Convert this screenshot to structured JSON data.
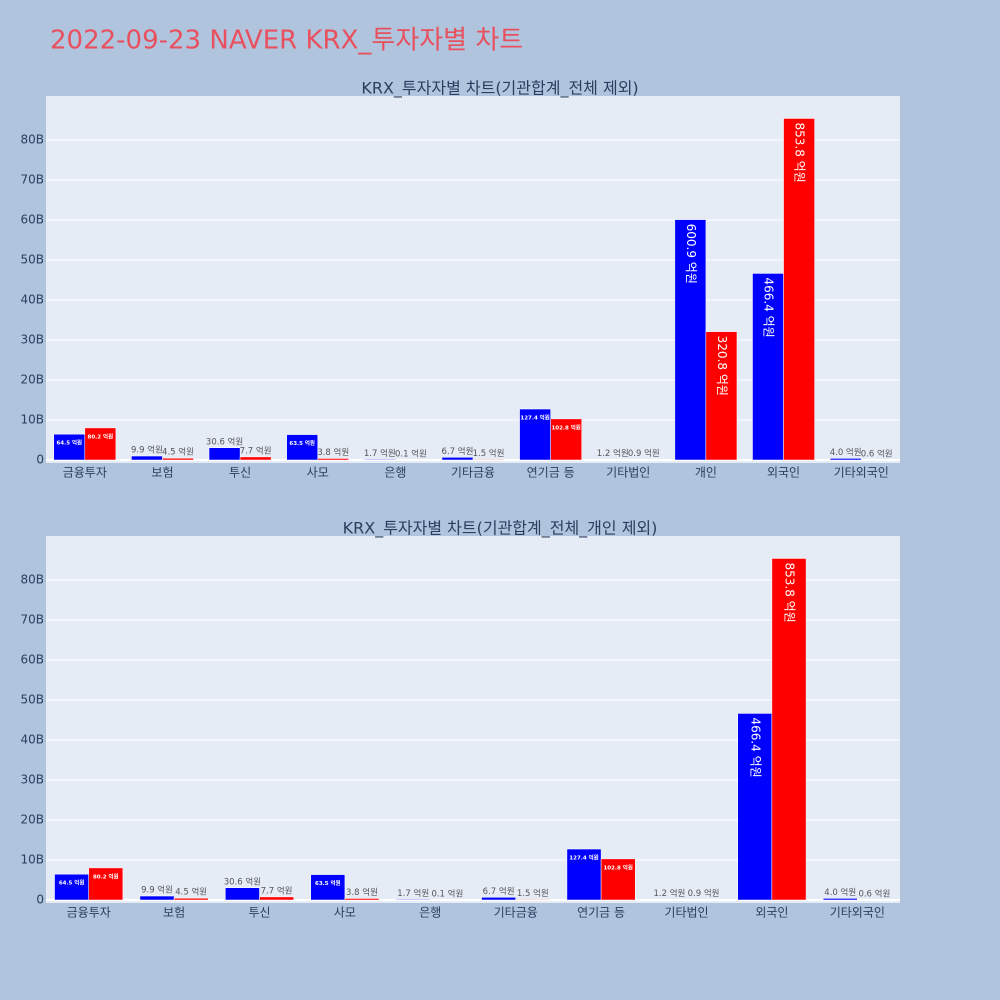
{
  "title": "2022-09-23 NAVER KRX_투자자별 차트",
  "chart_data": [
    {
      "type": "bar",
      "title": "KRX_투자자별 차트(기관합계_전체 제외)",
      "categories": [
        "금융투자",
        "보험",
        "투신",
        "사모",
        "은행",
        "기타금융",
        "연기금 등",
        "기타법인",
        "개인",
        "외국인",
        "기타외국인"
      ],
      "series": [
        {
          "color": "#0000ff",
          "values": [
            6450000000,
            990000000,
            3060000000,
            6350000000,
            170000000,
            670000000,
            12740000000,
            120000000,
            60090000000,
            46640000000,
            400000000
          ],
          "value_labels": [
            "64.5 억원",
            "9.9 억원",
            "30.6 억원",
            "63.5 억원",
            "1.7 억원",
            "6.7 억원",
            "127.4 억원",
            "1.2 억원",
            "600.9 억원",
            "466.4 억원",
            "4.0 억원"
          ]
        },
        {
          "color": "#ff0000",
          "values": [
            8020000000,
            450000000,
            770000000,
            380000000,
            10000000,
            150000000,
            10280000000,
            90000000,
            32080000000,
            85380000000,
            60000000
          ],
          "value_labels": [
            "80.2 억원",
            "4.5 억원",
            "7.7 억원",
            "3.8 억원",
            "0.1 억원",
            "1.5 억원",
            "102.8 억원",
            "0.9 억원",
            "320.8 억원",
            "853.8 억원",
            "0.6 억원"
          ]
        }
      ],
      "ylim": [
        -750000000,
        91000000000
      ],
      "yticks": [
        0,
        {
          "value": 10000000000,
          "label": "10B"
        },
        {
          "value": 20000000000,
          "label": "20B"
        },
        {
          "value": 30000000000,
          "label": "30B"
        },
        {
          "value": 40000000000,
          "label": "40B"
        },
        {
          "value": 50000000000,
          "label": "50B"
        },
        {
          "value": 60000000000,
          "label": "60B"
        },
        {
          "value": 70000000000,
          "label": "70B"
        },
        {
          "value": 80000000000,
          "label": "80B"
        }
      ],
      "grid": true
    },
    {
      "type": "bar",
      "title": "KRX_투자자별 차트(기관합계_전체_개인 제외)",
      "categories": [
        "금융투자",
        "보험",
        "투신",
        "사모",
        "은행",
        "기타금융",
        "연기금 등",
        "기타법인",
        "외국인",
        "기타외국인"
      ],
      "series": [
        {
          "color": "#0000ff",
          "values": [
            6450000000,
            990000000,
            3060000000,
            6350000000,
            170000000,
            670000000,
            12740000000,
            120000000,
            46640000000,
            400000000
          ],
          "value_labels": [
            "64.5 억원",
            "9.9 억원",
            "30.6 억원",
            "63.5 억원",
            "1.7 억원",
            "6.7 억원",
            "127.4 억원",
            "1.2 억원",
            "466.4 억원",
            "4.0 억원"
          ]
        },
        {
          "color": "#ff0000",
          "values": [
            8020000000,
            450000000,
            770000000,
            380000000,
            10000000,
            150000000,
            10280000000,
            90000000,
            85380000000,
            60000000
          ],
          "value_labels": [
            "80.2 억원",
            "4.5 억원",
            "7.7 억원",
            "3.8 억원",
            "0.1 억원",
            "1.5 억원",
            "102.8 억원",
            "0.9 억원",
            "853.8 억원",
            "0.6 억원"
          ]
        }
      ],
      "ylim": [
        -750000000,
        91000000000
      ],
      "yticks": [
        0,
        {
          "value": 10000000000,
          "label": "10B"
        },
        {
          "value": 20000000000,
          "label": "20B"
        },
        {
          "value": 30000000000,
          "label": "30B"
        },
        {
          "value": 40000000000,
          "label": "40B"
        },
        {
          "value": 50000000000,
          "label": "50B"
        },
        {
          "value": 60000000000,
          "label": "60B"
        },
        {
          "value": 70000000000,
          "label": "70B"
        },
        {
          "value": 80000000000,
          "label": "80B"
        }
      ],
      "grid": true
    }
  ]
}
